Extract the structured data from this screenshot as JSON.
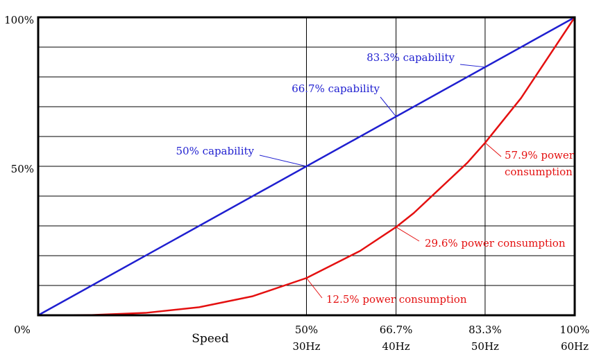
{
  "chart_data": {
    "type": "line",
    "title": "",
    "xlabel": "Speed",
    "ylabel": "",
    "xlim": [
      0,
      100
    ],
    "ylim": [
      0,
      100
    ],
    "grid": true,
    "x_ticks": [
      {
        "value": 0,
        "label": "0%",
        "sublabel": ""
      },
      {
        "value": 50,
        "label": "50%",
        "sublabel": "30Hz"
      },
      {
        "value": 66.7,
        "label": "66.7%",
        "sublabel": "40Hz"
      },
      {
        "value": 83.3,
        "label": "83.3%",
        "sublabel": "50Hz"
      },
      {
        "value": 100,
        "label": "100%",
        "sublabel": "60Hz"
      }
    ],
    "y_ticks": [
      {
        "value": 50,
        "label": "50%"
      },
      {
        "value": 100,
        "label": "100%"
      }
    ],
    "y_gridlines": [
      10,
      20,
      30,
      40,
      50,
      60,
      70,
      80,
      90
    ],
    "series": [
      {
        "key": "capability",
        "color": "#1f1fd0",
        "x": [
          0,
          100
        ],
        "y": [
          0,
          100
        ]
      },
      {
        "key": "power",
        "color": "#e41010",
        "x": [
          0,
          10,
          20,
          30,
          40,
          50,
          60,
          66.7,
          70,
          80,
          83.3,
          90,
          100
        ],
        "y": [
          0,
          0.1,
          0.8,
          2.7,
          6.4,
          12.5,
          21.6,
          29.6,
          34.3,
          51.2,
          57.9,
          72.9,
          100
        ]
      }
    ],
    "annotations": [
      {
        "series": "capability",
        "text": "50% capability",
        "x": 50,
        "y": 50
      },
      {
        "series": "capability",
        "text": "66.7% capability",
        "x": 66.7,
        "y": 66.7
      },
      {
        "series": "capability",
        "text": "83.3% capability",
        "x": 83.3,
        "y": 83.3
      },
      {
        "series": "power",
        "text": "12.5% power consumption",
        "x": 50,
        "y": 12.5
      },
      {
        "series": "power",
        "text": "29.6% power consumption",
        "x": 66.7,
        "y": 29.6
      },
      {
        "series": "power",
        "text": "57.9% power",
        "text2": "consumption",
        "x": 83.3,
        "y": 57.9
      }
    ]
  }
}
